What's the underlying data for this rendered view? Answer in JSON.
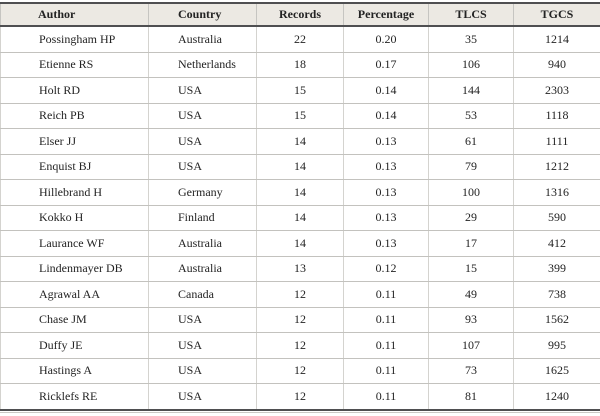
{
  "colors": {
    "header_bg": "#ece9e3",
    "border_dark": "#4f4f51",
    "grid_vertical_header": "#c6c5c1",
    "grid_vertical_body": "#d4d3cf",
    "grid_horizontal": "#c3c2be",
    "outer_edge": "#c9c8c4",
    "text": "#232323"
  },
  "table": {
    "columns": [
      {
        "key": "author",
        "label": "Author"
      },
      {
        "key": "country",
        "label": "Country"
      },
      {
        "key": "records",
        "label": "Records"
      },
      {
        "key": "percentage",
        "label": "Percentage"
      },
      {
        "key": "tlcs",
        "label": "TLCS"
      },
      {
        "key": "tgcs",
        "label": "TGCS"
      }
    ],
    "rows": [
      [
        "Possingham HP",
        "Australia",
        "22",
        "0.20",
        "35",
        "1214"
      ],
      [
        "Etienne RS",
        "Netherlands",
        "18",
        "0.17",
        "106",
        "940"
      ],
      [
        "Holt RD",
        "USA",
        "15",
        "0.14",
        "144",
        "2303"
      ],
      [
        "Reich PB",
        "USA",
        "15",
        "0.14",
        "53",
        "1118"
      ],
      [
        "Elser JJ",
        "USA",
        "14",
        "0.13",
        "61",
        "1111"
      ],
      [
        "Enquist BJ",
        "USA",
        "14",
        "0.13",
        "79",
        "1212"
      ],
      [
        "Hillebrand H",
        "Germany",
        "14",
        "0.13",
        "100",
        "1316"
      ],
      [
        "Kokko H",
        "Finland",
        "14",
        "0.13",
        "29",
        "590"
      ],
      [
        "Laurance WF",
        "Australia",
        "14",
        "0.13",
        "17",
        "412"
      ],
      [
        "Lindenmayer DB",
        "Australia",
        "13",
        "0.12",
        "15",
        "399"
      ],
      [
        "Agrawal AA",
        "Canada",
        "12",
        "0.11",
        "49",
        "738"
      ],
      [
        "Chase JM",
        "USA",
        "12",
        "0.11",
        "93",
        "1562"
      ],
      [
        "Duffy JE",
        "USA",
        "12",
        "0.11",
        "107",
        "995"
      ],
      [
        "Hastings A",
        "USA",
        "12",
        "0.11",
        "73",
        "1625"
      ],
      [
        "Ricklefs RE",
        "USA",
        "12",
        "0.11",
        "81",
        "1240"
      ]
    ]
  }
}
